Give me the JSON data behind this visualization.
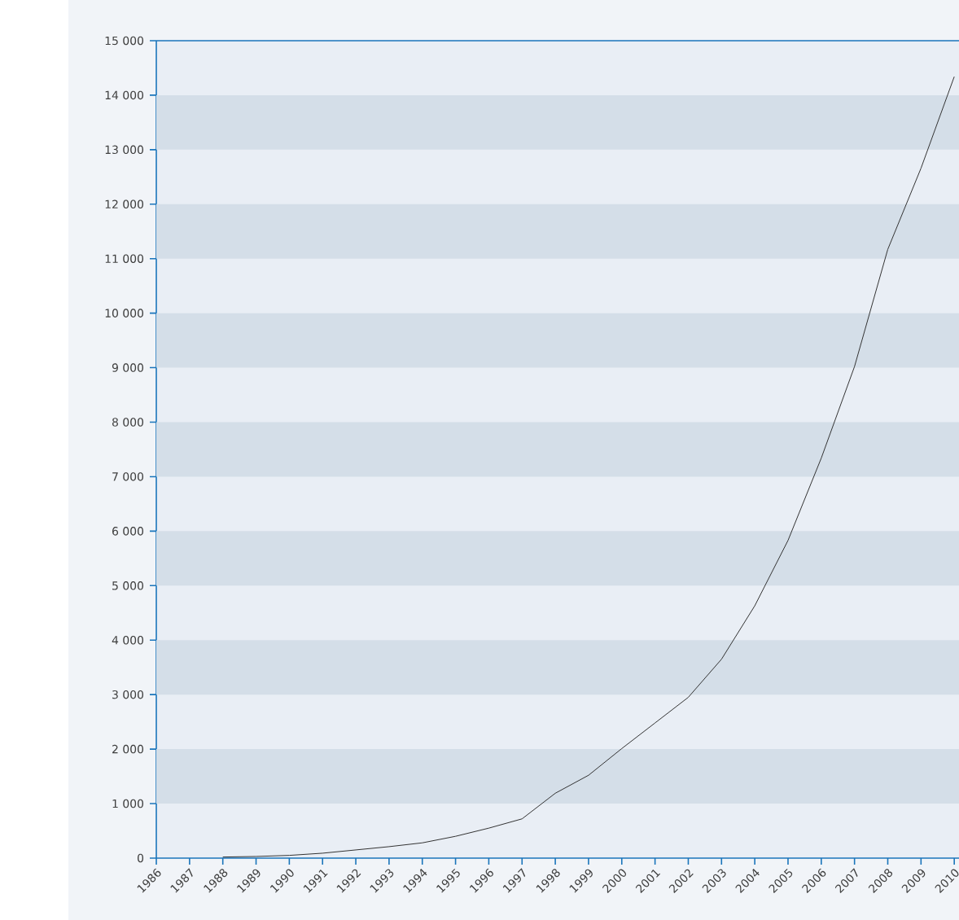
{
  "chart_data": {
    "type": "line",
    "categories": [
      "1986",
      "1987",
      "1988",
      "1989",
      "1990",
      "1991",
      "1992",
      "1993",
      "1994",
      "1995",
      "1996",
      "1997",
      "1998",
      "1999",
      "2000",
      "2001",
      "2002",
      "2003",
      "2004",
      "2005",
      "2006",
      "2007",
      "2008",
      "2009",
      "2010"
    ],
    "series": [
      {
        "color": "#333333",
        "values": [
          null,
          null,
          20,
          30,
          50,
          90,
          150,
          210,
          280,
          400,
          550,
          720,
          1190,
          1520,
          2010,
          2480,
          2950,
          3650,
          4630,
          5830,
          7340,
          9020,
          11170,
          12660,
          14340
        ]
      }
    ],
    "ylim": [
      0,
      15000
    ],
    "yticks": [
      {
        "value": 0,
        "label": "0"
      },
      {
        "value": 1000,
        "label": "1 000"
      },
      {
        "value": 2000,
        "label": "2 000"
      },
      {
        "value": 3000,
        "label": "3 000"
      },
      {
        "value": 4000,
        "label": "4 000"
      },
      {
        "value": 5000,
        "label": "5 000"
      },
      {
        "value": 6000,
        "label": "6 000"
      },
      {
        "value": 7000,
        "label": "7 000"
      },
      {
        "value": 8000,
        "label": "8 000"
      },
      {
        "value": 9000,
        "label": "9 000"
      },
      {
        "value": 10000,
        "label": "10 000"
      },
      {
        "value": 11000,
        "label": "11 000"
      },
      {
        "value": 12000,
        "label": "12 000"
      },
      {
        "value": 13000,
        "label": "13 000"
      },
      {
        "value": 14000,
        "label": "14 000"
      },
      {
        "value": 15000,
        "label": "15 000"
      }
    ],
    "bands": [
      {
        "axis": "y",
        "from": 1000,
        "to": 2000,
        "color": "#d4dee8"
      },
      {
        "axis": "y",
        "from": 3000,
        "to": 4000,
        "color": "#d4dee8"
      },
      {
        "axis": "y",
        "from": 5000,
        "to": 6000,
        "color": "#d4dee8"
      },
      {
        "axis": "y",
        "from": 7000,
        "to": 8000,
        "color": "#d4dee8"
      },
      {
        "axis": "y",
        "from": 9000,
        "to": 10000,
        "color": "#d4dee8"
      },
      {
        "axis": "y",
        "from": 11000,
        "to": 12000,
        "color": "#d4dee8"
      },
      {
        "axis": "y",
        "from": 13000,
        "to": 14000,
        "color": "#d4dee8"
      }
    ],
    "marker": "none",
    "line_style": "solid"
  }
}
